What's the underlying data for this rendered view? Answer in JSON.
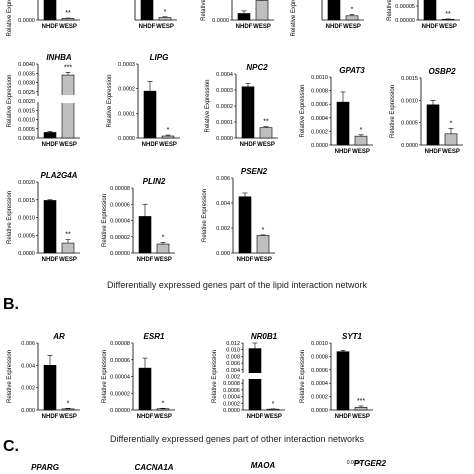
{
  "colors": {
    "nhdf": "#000000",
    "wesp": "#bfbfbf",
    "axis": "#000000"
  },
  "figure": {
    "panel_letters": [
      "B.",
      "C."
    ],
    "captions": [
      "Differentially expressed genes part of the lipid interaction network",
      "Differentially expressed genes part of other interaction networks"
    ]
  },
  "chart_data": [
    {
      "type": "bar",
      "title": "",
      "ylabel": "Relative Expression",
      "categories": [
        "NHDF",
        "WESP"
      ],
      "values": [
        0.0012,
        8e-05
      ],
      "errors": [
        0.0003,
        2e-05
      ],
      "ylim": [
        0,
        0.0015
      ],
      "ticks": [
        "0.0000"
      ],
      "significance": "**"
    },
    {
      "type": "bar",
      "title": "",
      "ylabel": "",
      "categories": [
        "NHDF",
        "WESP"
      ],
      "values": [
        0.0014,
        0.00012
      ],
      "errors": [
        0.0002,
        4e-05
      ],
      "ylim": [
        0,
        0.0015
      ],
      "ticks": [],
      "significance": "*"
    },
    {
      "type": "bar",
      "title": "",
      "ylabel": "Relative",
      "categories": [
        "NHDF",
        "WESP"
      ],
      "values": [
        0.00015,
        0.00045
      ],
      "errors": [
        6e-05,
        0.00012
      ],
      "ylim": [
        0,
        0.0006
      ],
      "ticks": [
        "0.0000"
      ],
      "significance": ""
    },
    {
      "type": "bar",
      "title": "",
      "ylabel": "Relative Expression",
      "categories": [
        "NHDF",
        "WESP"
      ],
      "values": [
        0.0022,
        0.00035
      ],
      "errors": [
        0.0003,
        0.0001
      ],
      "ylim": [
        0,
        0.0025
      ],
      "ticks": [],
      "significance": "*"
    },
    {
      "type": "bar",
      "title": "",
      "ylabel": "Relative",
      "categories": [
        "NHDF",
        "WESP"
      ],
      "values": [
        0.0016,
        5e-05
      ],
      "errors": [
        0.0002,
        2e-05
      ],
      "ylim": [
        0,
        0.002
      ],
      "ticks": [
        "0.00005",
        "0.00000"
      ],
      "significance": "**"
    },
    {
      "type": "bar",
      "title": "INHBA",
      "ylabel": "Relative Expression",
      "categories": [
        "NHDF",
        "WESP"
      ],
      "values": [
        0.0003,
        0.0034
      ],
      "errors": [
        5e-05,
        0.00015
      ],
      "ylim": [
        0,
        0.004
      ],
      "ticks": [
        "0.0040",
        "0.0035",
        "0.0030",
        "0.0025",
        "0.0020",
        "0.0015",
        "0.0010",
        "0.0005",
        "0.0000"
      ],
      "significance": "***"
    },
    {
      "type": "bar",
      "title": "LIPG",
      "ylabel": "Relative Expression",
      "categories": [
        "NHDF",
        "WESP"
      ],
      "values": [
        0.00019,
        8e-06
      ],
      "errors": [
        4e-05,
        4e-06
      ],
      "ylim": [
        0,
        0.0003
      ],
      "ticks": [
        "0.0003",
        "0.0002",
        "0.0001",
        "0.0000"
      ],
      "significance": "*"
    },
    {
      "type": "bar",
      "title": "NPC2",
      "ylabel": "Relative Expression",
      "categories": [
        "NHDF",
        "WESP"
      ],
      "values": [
        0.00032,
        6.5e-05
      ],
      "errors": [
        2e-05,
        6e-06
      ],
      "ylim": [
        0,
        0.0004
      ],
      "ticks": [
        "0.0004",
        "0.0003",
        "0.0002",
        "0.0001",
        "0.0000"
      ],
      "significance": "**"
    },
    {
      "type": "bar",
      "title": "GPAT3",
      "ylabel": "Relative Expression",
      "categories": [
        "NHDF",
        "WESP"
      ],
      "values": [
        0.00063,
        0.00013
      ],
      "errors": [
        0.00015,
        2e-05
      ],
      "ylim": [
        0,
        0.001
      ],
      "ticks": [
        "0.0010",
        "0.0008",
        "0.0006",
        "0.0004",
        "0.0002",
        "0.0000"
      ],
      "significance": "*"
    },
    {
      "type": "bar",
      "title": "OSBP2",
      "ylabel": "Relative Expression",
      "categories": [
        "NHDF",
        "WESP"
      ],
      "values": [
        0.0009,
        0.00025
      ],
      "errors": [
        0.0001,
        0.00012
      ],
      "ylim": [
        0,
        0.0015
      ],
      "ticks": [
        "0.0015",
        "0.0010",
        "0.0005",
        "0.0000"
      ],
      "significance": "*"
    },
    {
      "type": "bar",
      "title": "PLA2G4A",
      "ylabel": "Relative Expression",
      "categories": [
        "NHDF",
        "WESP"
      ],
      "values": [
        0.00148,
        0.00028
      ],
      "errors": [
        2e-05,
        0.0001
      ],
      "ylim": [
        0,
        0.002
      ],
      "ticks": [
        "0.0020",
        "0.0015",
        "0.0010",
        "0.0005",
        "0.0000"
      ],
      "significance": "**"
    },
    {
      "type": "bar",
      "title": "PLIN2",
      "ylabel": "Relative Expression",
      "categories": [
        "NHDF",
        "WESP"
      ],
      "values": [
        4.5e-05,
        1.1e-05
      ],
      "errors": [
        1.5e-05,
        2e-06
      ],
      "ylim": [
        0,
        8e-05
      ],
      "ticks": [
        "0.00008",
        "0.00006",
        "0.00004",
        "0.00002",
        "0.00000"
      ],
      "significance": "*"
    },
    {
      "type": "bar",
      "title": "PSEN2",
      "ylabel": "Relative Expression",
      "categories": [
        "NHDF",
        "WESP"
      ],
      "values": [
        0.0045,
        0.0014
      ],
      "errors": [
        0.0003,
        5e-05
      ],
      "ylim": [
        0,
        0.006
      ],
      "ticks": [
        "0.006",
        "0.004",
        "0.002",
        "0.000"
      ],
      "significance": "*"
    },
    {
      "type": "bar",
      "title": "AR",
      "ylabel": "Relative Expression",
      "categories": [
        "NHDF",
        "WESP"
      ],
      "values": [
        0.004,
        0.0001
      ],
      "errors": [
        0.0009,
        5e-05
      ],
      "ylim": [
        0,
        0.006
      ],
      "ticks": [
        "0.006",
        "0.004",
        "0.002",
        "0.000"
      ],
      "significance": "*"
    },
    {
      "type": "bar",
      "title": "ESR1",
      "ylabel": "Relative Expression",
      "categories": [
        "NHDF",
        "WESP"
      ],
      "values": [
        5e-05,
        1.5e-06
      ],
      "errors": [
        1.2e-05,
        5e-07
      ],
      "ylim": [
        0,
        8e-05
      ],
      "ticks": [
        "0.00008",
        "0.00006",
        "0.00004",
        "0.00002",
        "0.00000"
      ],
      "significance": "*"
    },
    {
      "type": "bar",
      "title": "NR0B1",
      "ylabel": "Relative Expression",
      "categories": [
        "NHDF",
        "WESP"
      ],
      "values": [
        0.011,
        0.00015
      ],
      "errors": [
        0.0025,
        5e-05
      ],
      "ylim": [
        0,
        0.012
      ],
      "ticks": [
        "0.012",
        "0.010",
        "0.008",
        "0.006",
        "0.004",
        "0.002",
        "0.0008",
        "0.0006",
        "0.0004",
        "0.0002",
        "0.0000"
      ],
      "significance": "*"
    },
    {
      "type": "bar",
      "title": "SYT1",
      "ylabel": "Relative Expression",
      "categories": [
        "NHDF",
        "WESP"
      ],
      "values": [
        0.00087,
        4e-05
      ],
      "errors": [
        2e-05,
        2e-05
      ],
      "ylim": [
        0,
        0.001
      ],
      "ticks": [
        "0.0010",
        "0.0008",
        "0.0006",
        "0.0004",
        "0.0002",
        "0.0000"
      ],
      "significance": "***"
    },
    {
      "type": "bar",
      "title": "PPARG",
      "ylabel": "",
      "categories": [],
      "values": [],
      "ylim": [],
      "ticks": [],
      "significance": ""
    },
    {
      "type": "bar",
      "title": "CACNA1A",
      "ylabel": "",
      "categories": [],
      "values": [],
      "ylim": [],
      "ticks": [],
      "significance": ""
    },
    {
      "type": "bar",
      "title": "MAOA",
      "ylabel": "",
      "categories": [],
      "values": [],
      "ylim": [],
      "ticks": [],
      "significance": ""
    },
    {
      "type": "bar",
      "title": "PTGER2",
      "ylabel": "",
      "categories": [],
      "values": [],
      "ylim": [],
      "ticks": [
        "0.0010"
      ],
      "significance": ""
    }
  ]
}
